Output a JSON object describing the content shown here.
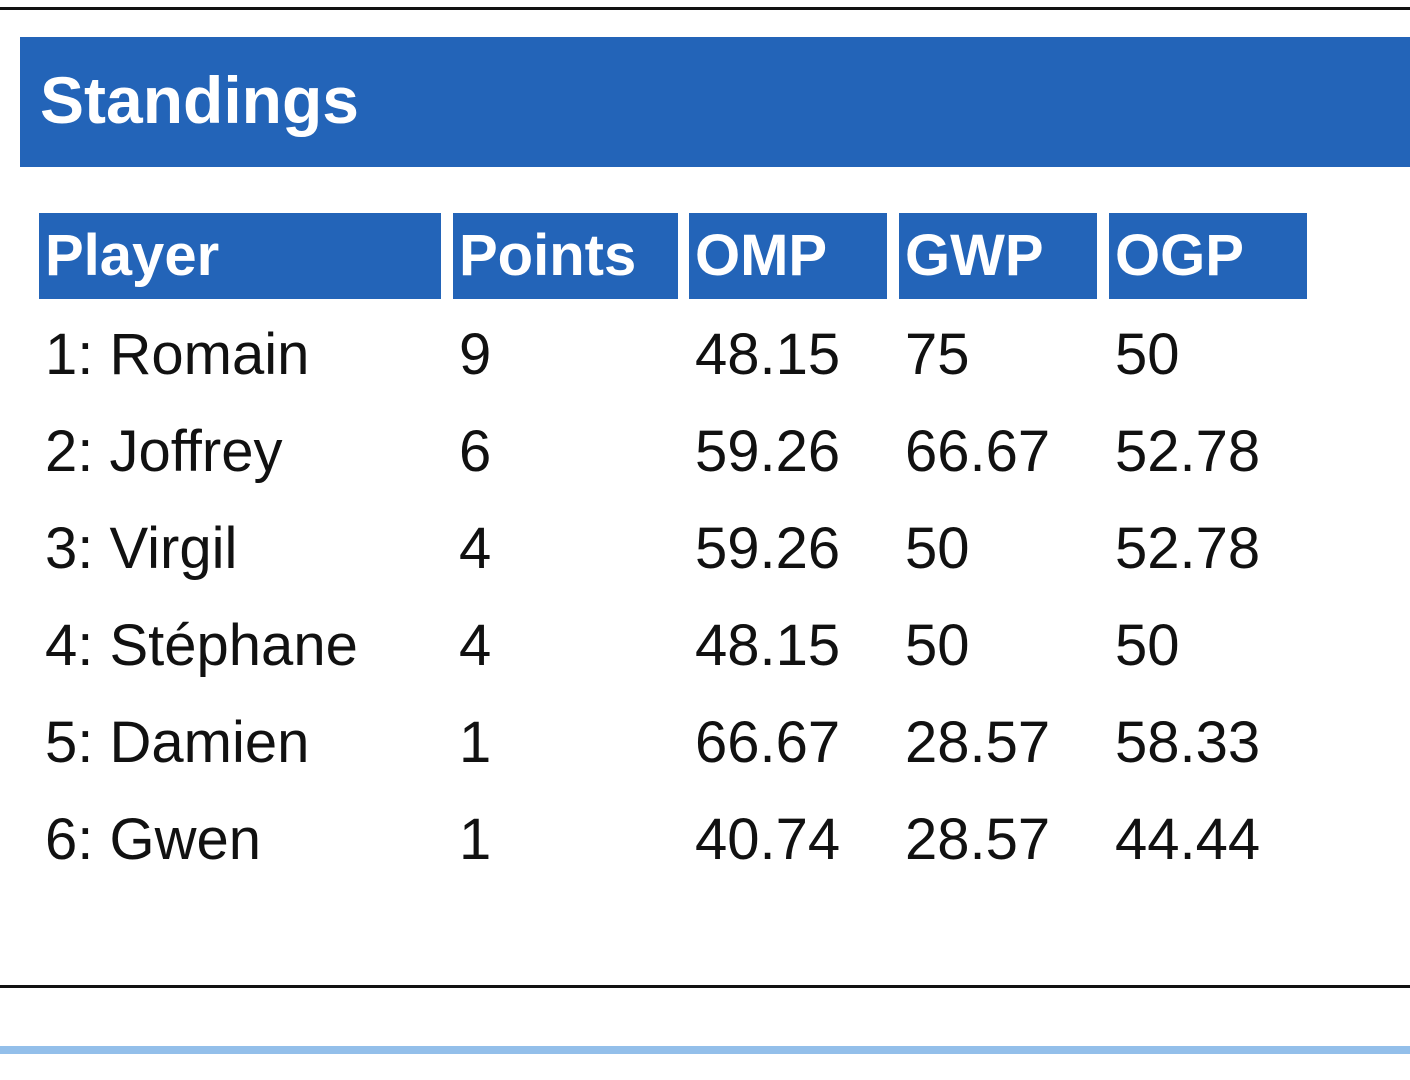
{
  "header": {
    "title": "Standings"
  },
  "table": {
    "columns": [
      "Player",
      "Points",
      "OMP",
      "GWP",
      "OGP"
    ],
    "rows": [
      [
        "1: Romain",
        9,
        48.15,
        75,
        50
      ],
      [
        "2: Joffrey",
        6,
        59.26,
        66.67,
        52.78
      ],
      [
        "3: Virgil",
        4,
        59.26,
        50,
        52.78
      ],
      [
        "4: Stéphane",
        4,
        48.15,
        50,
        50
      ],
      [
        "5: Damien",
        1,
        66.67,
        28.57,
        58.33
      ],
      [
        "6: Gwen",
        1,
        40.74,
        28.57,
        44.44
      ]
    ]
  }
}
